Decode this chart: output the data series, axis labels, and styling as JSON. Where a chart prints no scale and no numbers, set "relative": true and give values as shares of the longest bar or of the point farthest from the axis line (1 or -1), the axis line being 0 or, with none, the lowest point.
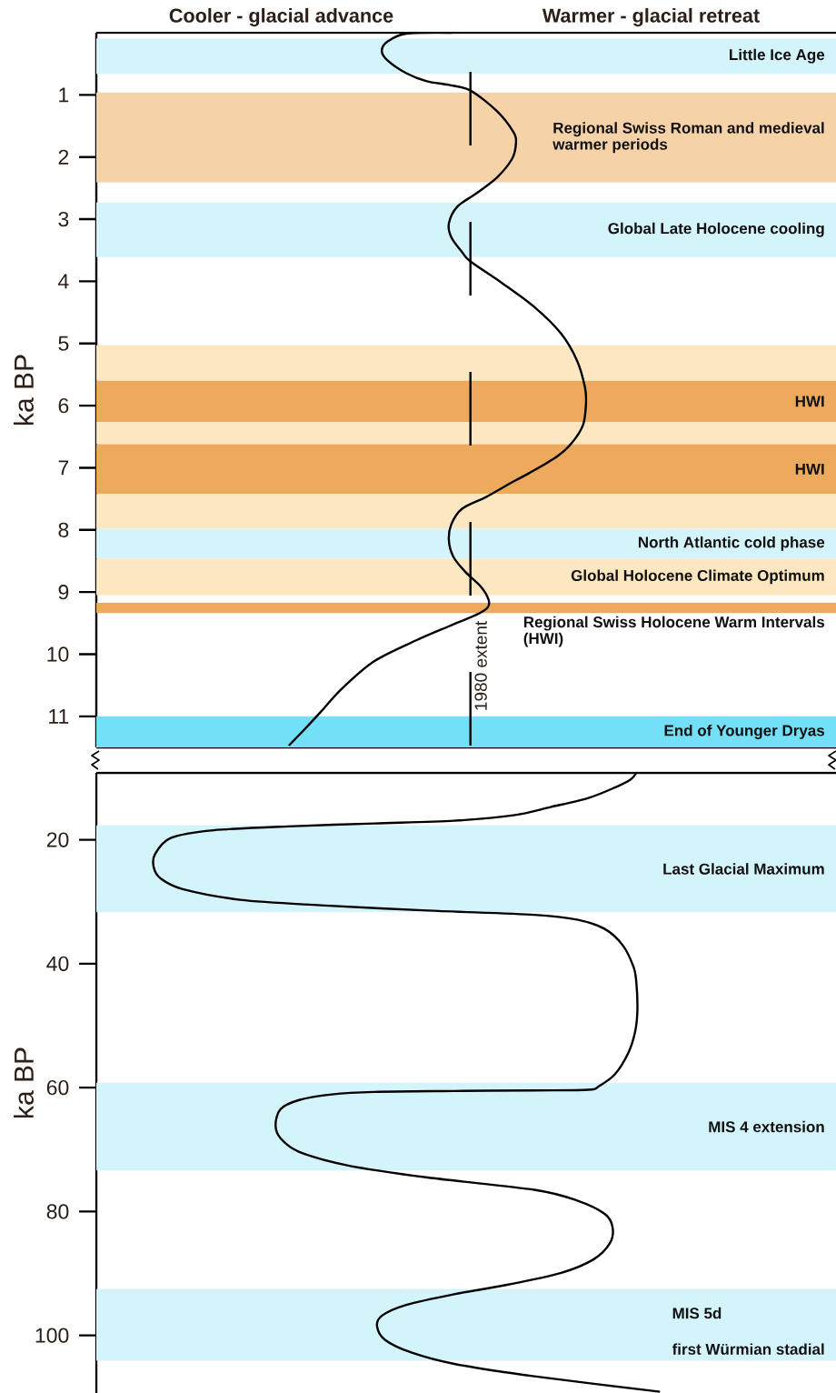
{
  "chart_data": [
    {
      "type": "line",
      "orientation": "horizontal",
      "relative": true,
      "tick_labels": "y",
      "ylabel": "ka BP",
      "ylim": [
        11.5,
        0
      ],
      "yticks": [
        1,
        2,
        3,
        4,
        5,
        6,
        7,
        8,
        9,
        10,
        11
      ],
      "annotations": [
        "Cooler - glacial advance",
        "Warmer - glacial retreat"
      ],
      "series": [
        {
          "color": "#000000",
          "x": [
            0,
            0.015,
            0.14,
            0.29,
            0.44,
            0.65,
            0.78,
            0.84,
            0.93,
            1.26,
            1.6,
            1.78,
            2.03,
            2.33,
            2.59,
            2.8,
            3.07,
            3.29,
            3.54,
            3.68,
            4.03,
            4.41,
            4.84,
            5.28,
            5.71,
            5.97,
            6.31,
            6.61,
            6.83,
            7.09,
            7.22,
            7.47,
            7.66,
            7.91,
            8.17,
            8.43,
            8.67,
            8.91,
            9.12,
            9.25,
            9.37,
            9.55,
            9.77,
            10.11,
            10.55,
            10.93,
            11.21,
            11.47
          ],
          "values": [
            0.725,
            0.633,
            0.595,
            0.583,
            0.594,
            0.633,
            0.675,
            0.72,
            0.764,
            0.818,
            0.852,
            0.857,
            0.849,
            0.818,
            0.775,
            0.737,
            0.72,
            0.725,
            0.748,
            0.764,
            0.829,
            0.894,
            0.949,
            0.982,
            0.998,
            1.0,
            0.994,
            0.97,
            0.939,
            0.883,
            0.852,
            0.796,
            0.747,
            0.725,
            0.72,
            0.729,
            0.753,
            0.785,
            0.801,
            0.799,
            0.775,
            0.72,
            0.655,
            0.568,
            0.502,
            0.458,
            0.425,
            0.393
          ]
        }
      ],
      "bands": [
        {
          "axis": "y",
          "from": 0.09,
          "to": 0.66,
          "label": "Little Ice Age",
          "color": "#d4f4fc"
        },
        {
          "axis": "y",
          "from": 0.96,
          "to": 2.41,
          "label": "Regional Swiss Roman and medieval warmer periods",
          "color": "#f6d2a8"
        },
        {
          "axis": "y",
          "from": 2.73,
          "to": 3.61,
          "label": "Global Late Holocene cooling",
          "color": "#d4f4fc"
        },
        {
          "axis": "y",
          "from": 5.03,
          "to": 5.6,
          "color": "#fde7c1"
        },
        {
          "axis": "y",
          "from": 5.6,
          "to": 6.26,
          "label": "HWI",
          "color": "#eda95c"
        },
        {
          "axis": "y",
          "from": 6.26,
          "to": 6.62,
          "color": "#fde7c1"
        },
        {
          "axis": "y",
          "from": 6.62,
          "to": 7.42,
          "label": "HWI",
          "color": "#eda95c"
        },
        {
          "axis": "y",
          "from": 7.42,
          "to": 7.98,
          "color": "#fde7c1"
        },
        {
          "axis": "y",
          "from": 7.98,
          "to": 8.46,
          "label": "North Atlantic cold phase",
          "color": "#d4f4fc"
        },
        {
          "axis": "y",
          "from": 8.46,
          "to": 9.05,
          "label": "Global Holocene Climate Optimum",
          "color": "#fde7c1"
        },
        {
          "axis": "y",
          "from": 9.17,
          "to": 9.34,
          "label": "Regional Swiss Holocene Warm Intervals (HWI)",
          "color": "#eda95c"
        },
        {
          "axis": "y",
          "from": 11.0,
          "to": 11.5,
          "label": "End of Younger Dryas",
          "color": "#73e0f8"
        }
      ],
      "ref_lines": [
        {
          "axis": "x",
          "value": 0.764,
          "label": "1980 extent",
          "line_style": "dashed",
          "color": "#000000"
        }
      ]
    },
    {
      "type": "line",
      "orientation": "horizontal",
      "relative": true,
      "tick_labels": "y",
      "ylabel": "ka BP",
      "ylim": [
        109.3,
        9.2
      ],
      "yticks": [
        20,
        40,
        60,
        80,
        100
      ],
      "annotations": [
        "first Würmian stadial"
      ],
      "series": [
        {
          "color": "#000000",
          "x": [
            9.2,
            10.25,
            11.56,
            13.25,
            14.71,
            16.04,
            16.92,
            17.36,
            17.8,
            18.46,
            19.71,
            22.35,
            24.51,
            26.24,
            27.93,
            29.69,
            30.57,
            31.42,
            32.11,
            32.89,
            34.39,
            37.03,
            40.48,
            42.91,
            47.46,
            50.94,
            54.36,
            57.86,
            59.75,
            60.35,
            60.45,
            60.55,
            60.7,
            61.1,
            62.0,
            63.47,
            66.05,
            68.2,
            70.37,
            72.54,
            74.52,
            76.5,
            78.23,
            80.39,
            82.56,
            85.14,
            87.74,
            89.9,
            91.8,
            93.35,
            95.08,
            96.8,
            98.5,
            100.7,
            102.8,
            104.6,
            106.6,
            109.1
          ],
          "values": [
            0.958,
            0.948,
            0.92,
            0.873,
            0.806,
            0.74,
            0.635,
            0.494,
            0.351,
            0.208,
            0.132,
            0.104,
            0.102,
            0.114,
            0.152,
            0.256,
            0.398,
            0.588,
            0.777,
            0.853,
            0.902,
            0.934,
            0.953,
            0.958,
            0.96,
            0.956,
            0.944,
            0.92,
            0.892,
            0.873,
            0.777,
            0.635,
            0.494,
            0.418,
            0.36,
            0.327,
            0.318,
            0.327,
            0.36,
            0.445,
            0.588,
            0.777,
            0.853,
            0.902,
            0.916,
            0.911,
            0.882,
            0.825,
            0.731,
            0.635,
            0.55,
            0.507,
            0.498,
            0.512,
            0.56,
            0.635,
            0.777,
            1.0
          ]
        }
      ],
      "bands": [
        {
          "axis": "y",
          "from": 17.65,
          "to": 31.7,
          "label": "Last Glacial Maximum",
          "color": "#d4f4fc"
        },
        {
          "axis": "y",
          "from": 59.2,
          "to": 73.4,
          "label": "MIS 4 extension",
          "color": "#d4f4fc"
        },
        {
          "axis": "y",
          "from": 92.5,
          "to": 104.1,
          "label": "MIS 5d",
          "color": "#d4f4fc"
        }
      ]
    }
  ]
}
